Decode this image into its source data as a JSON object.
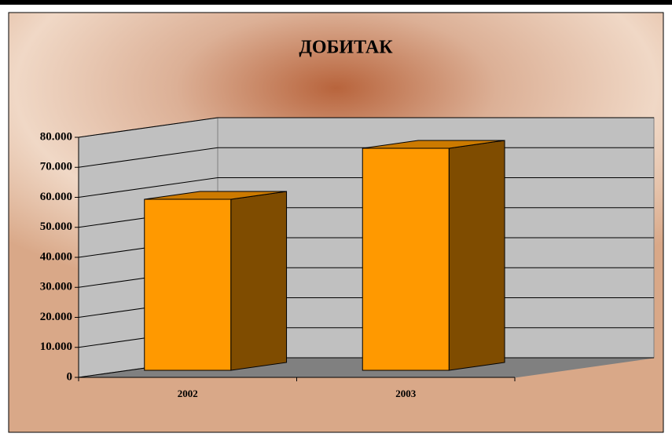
{
  "chart_data": {
    "type": "bar3d",
    "title": "ДОБИТАК",
    "categories": [
      "2002",
      "2003"
    ],
    "values": [
      57000,
      74000
    ],
    "color": "#ff9900",
    "ylim": [
      0,
      80000
    ],
    "yticks": [
      0,
      {
        "value": 10000,
        "label": "10.000"
      },
      {
        "value": 20000,
        "label": "20.000"
      },
      {
        "value": 30000,
        "label": "30.000"
      },
      {
        "value": 40000,
        "label": "40.000"
      },
      {
        "value": 50000,
        "label": "50.000"
      },
      {
        "value": 60000,
        "label": "60.000"
      },
      {
        "value": 70000,
        "label": "70.000"
      },
      {
        "value": 80000,
        "label": "80.000"
      }
    ],
    "grid": true
  }
}
